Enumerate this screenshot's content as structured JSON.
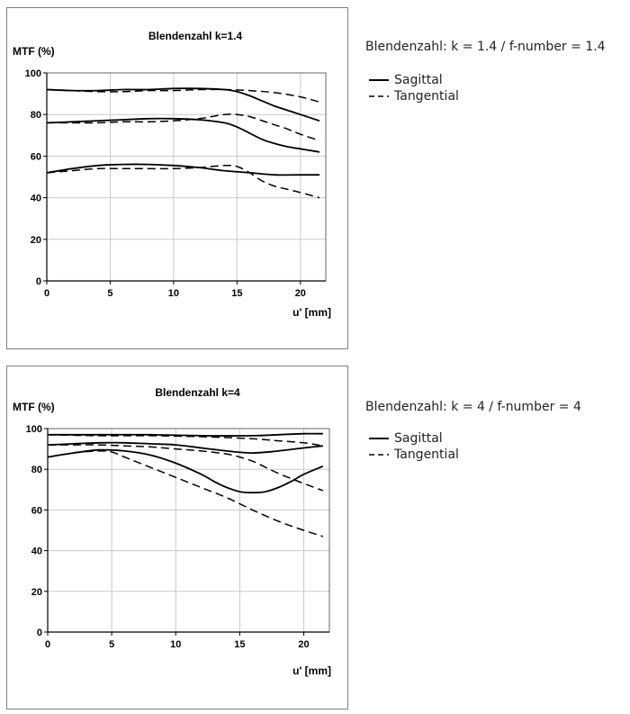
{
  "chart_data": [
    {
      "type": "line",
      "title": "Blendenzahl k=1.4",
      "ylabel": "MTF (%)",
      "xlabel": "u' [mm]",
      "xlim": [
        0,
        22
      ],
      "ylim": [
        0,
        100
      ],
      "xticks": [
        0,
        5,
        10,
        15,
        20
      ],
      "yticks": [
        0,
        20,
        40,
        60,
        80,
        100
      ],
      "grid": true,
      "caption": "Blendenzahl: k = 1.4 / f-number = 1.4",
      "legend": [
        {
          "label": "Sagittal",
          "style": "solid"
        },
        {
          "label": "Tangential",
          "style": "dashed"
        }
      ],
      "series": [
        {
          "style": "solid",
          "x": [
            0,
            2,
            4,
            6,
            8,
            10,
            12,
            14,
            15,
            16,
            17,
            18,
            19,
            20,
            21.5
          ],
          "y": [
            92,
            91.5,
            91.5,
            92,
            92,
            92.5,
            92.5,
            92,
            91,
            89,
            86.5,
            84,
            82,
            80,
            77
          ]
        },
        {
          "style": "dashed",
          "x": [
            0,
            2,
            4,
            6,
            8,
            10,
            12,
            14,
            16,
            18,
            20,
            21.5
          ],
          "y": [
            92,
            91.5,
            91,
            91,
            91.5,
            91.5,
            92,
            92,
            91.5,
            90.5,
            88.5,
            86
          ]
        },
        {
          "style": "solid",
          "x": [
            0,
            2,
            4,
            6,
            8,
            10,
            12,
            14,
            15,
            16,
            17,
            18,
            19,
            20,
            21.5
          ],
          "y": [
            76,
            76.5,
            77,
            77.5,
            78,
            78,
            77.5,
            76,
            74,
            71,
            68,
            66,
            64.5,
            63.5,
            62
          ]
        },
        {
          "style": "dashed",
          "x": [
            0,
            2,
            4,
            6,
            8,
            10,
            12,
            13,
            14,
            15,
            16,
            17,
            18,
            19,
            20,
            21.5
          ],
          "y": [
            76,
            76,
            76,
            76.5,
            76.5,
            77,
            78,
            79,
            80,
            80,
            79,
            77,
            75,
            73,
            70.5,
            67.5
          ]
        },
        {
          "style": "solid",
          "x": [
            0,
            2,
            4,
            6,
            8,
            10,
            12,
            14,
            16,
            18,
            20,
            21.5
          ],
          "y": [
            52,
            54,
            55.5,
            56,
            56,
            55.5,
            54.5,
            53,
            52,
            51,
            51,
            51
          ]
        },
        {
          "style": "dashed",
          "x": [
            0,
            2,
            4,
            6,
            8,
            10,
            12,
            14,
            15,
            16,
            17,
            18,
            19,
            20,
            21.5
          ],
          "y": [
            52,
            53,
            54,
            54,
            54,
            54,
            54.5,
            55.5,
            55,
            52,
            48,
            45.5,
            44,
            42.5,
            40
          ]
        }
      ]
    },
    {
      "type": "line",
      "title": "Blendenzahl k=4",
      "ylabel": "MTF (%)",
      "xlabel": "u' [mm]",
      "xlim": [
        0,
        22
      ],
      "ylim": [
        0,
        100
      ],
      "xticks": [
        0,
        5,
        10,
        15,
        20
      ],
      "yticks": [
        0,
        20,
        40,
        60,
        80,
        100
      ],
      "grid": true,
      "caption": "Blendenzahl: k = 4 / f-number = 4",
      "legend": [
        {
          "label": "Sagittal",
          "style": "solid"
        },
        {
          "label": "Tangential",
          "style": "dashed"
        }
      ],
      "series": [
        {
          "style": "solid",
          "x": [
            0,
            4,
            8,
            12,
            16,
            18,
            20,
            21.5
          ],
          "y": [
            97,
            97,
            97,
            96.5,
            96.5,
            97,
            97.5,
            97.5
          ]
        },
        {
          "style": "dashed",
          "x": [
            0,
            4,
            8,
            12,
            16,
            18,
            20,
            21.5
          ],
          "y": [
            97,
            96.5,
            96.5,
            96,
            95,
            94,
            93,
            91.5
          ]
        },
        {
          "style": "solid",
          "x": [
            0,
            2,
            4,
            6,
            8,
            10,
            12,
            14,
            16,
            18,
            20,
            21.5
          ],
          "y": [
            92,
            92.5,
            93,
            93,
            92.5,
            92,
            90.5,
            89,
            88,
            89,
            90.5,
            91.5
          ]
        },
        {
          "style": "dashed",
          "x": [
            0,
            2,
            4,
            6,
            8,
            10,
            12,
            14,
            15,
            16,
            17,
            18,
            19,
            20,
            21.5
          ],
          "y": [
            92,
            92,
            92,
            91.5,
            91,
            90,
            89,
            87.5,
            86,
            84,
            81,
            78,
            75.5,
            73,
            69.5
          ]
        },
        {
          "style": "solid",
          "x": [
            0,
            2,
            4,
            6,
            8,
            10,
            12,
            13,
            14,
            15,
            16,
            17,
            18,
            19,
            20,
            21.5
          ],
          "y": [
            86,
            88,
            89.5,
            89,
            87,
            83,
            77.5,
            74,
            71,
            69,
            68.5,
            69,
            71,
            74,
            77.5,
            81.5
          ]
        },
        {
          "style": "dashed",
          "x": [
            0,
            2,
            4,
            5,
            6,
            8,
            10,
            12,
            14,
            16,
            18,
            20,
            21.5
          ],
          "y": [
            86,
            88,
            89,
            88.5,
            86,
            81,
            76,
            71,
            66,
            60,
            54.5,
            50,
            47
          ]
        }
      ]
    }
  ]
}
